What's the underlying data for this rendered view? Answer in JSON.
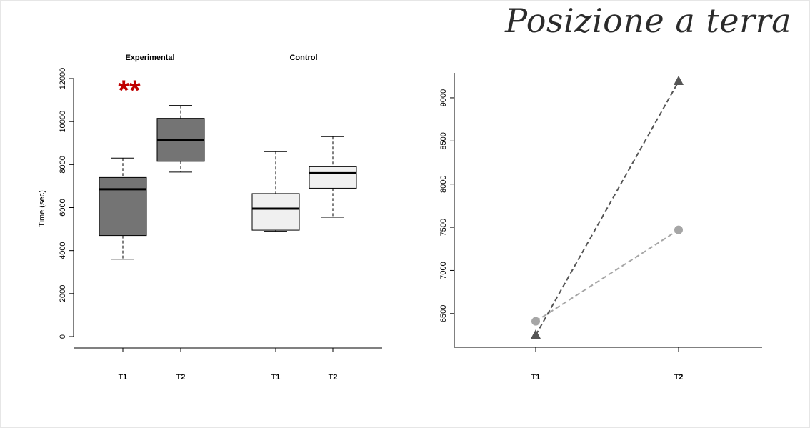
{
  "slide": {
    "title": "Posizione a terra"
  },
  "colors": {
    "experimental_fill": "#747474",
    "control_fill": "#f0f0f0",
    "line_dark": "#555555",
    "line_light": "#a6a6a6",
    "significance": "#c00000"
  },
  "chart_data": [
    {
      "type": "boxplot",
      "ylabel": "Time (sec)",
      "ylim": [
        0,
        12000
      ],
      "yticks": [
        0,
        2000,
        4000,
        6000,
        8000,
        10000,
        12000
      ],
      "groups": [
        {
          "label": "Experimental",
          "significance": "**",
          "boxes": [
            {
              "label": "T1",
              "whisker_low": 3600,
              "q1": 4700,
              "median": 6850,
              "q3": 7400,
              "whisker_high": 8300
            },
            {
              "label": "T2",
              "whisker_low": 7650,
              "q1": 8150,
              "median": 9150,
              "q3": 10150,
              "whisker_high": 10750
            }
          ]
        },
        {
          "label": "Control",
          "significance": "",
          "boxes": [
            {
              "label": "T1",
              "whisker_low": 4900,
              "q1": 4950,
              "median": 5950,
              "q3": 6650,
              "whisker_high": 8600
            },
            {
              "label": "T2",
              "whisker_low": 5550,
              "q1": 6900,
              "median": 7600,
              "q3": 7900,
              "whisker_high": 9300
            }
          ]
        }
      ]
    },
    {
      "type": "line",
      "categories": [
        "T1",
        "T2"
      ],
      "ylim": [
        6250,
        9300
      ],
      "yticks": [
        6500,
        7000,
        7500,
        8000,
        8500,
        9000
      ],
      "series": [
        {
          "marker": "triangle",
          "style": "dashed",
          "values": [
            6250,
            9190
          ]
        },
        {
          "marker": "circle",
          "style": "dashed",
          "values": [
            6410,
            7470
          ]
        }
      ]
    }
  ]
}
